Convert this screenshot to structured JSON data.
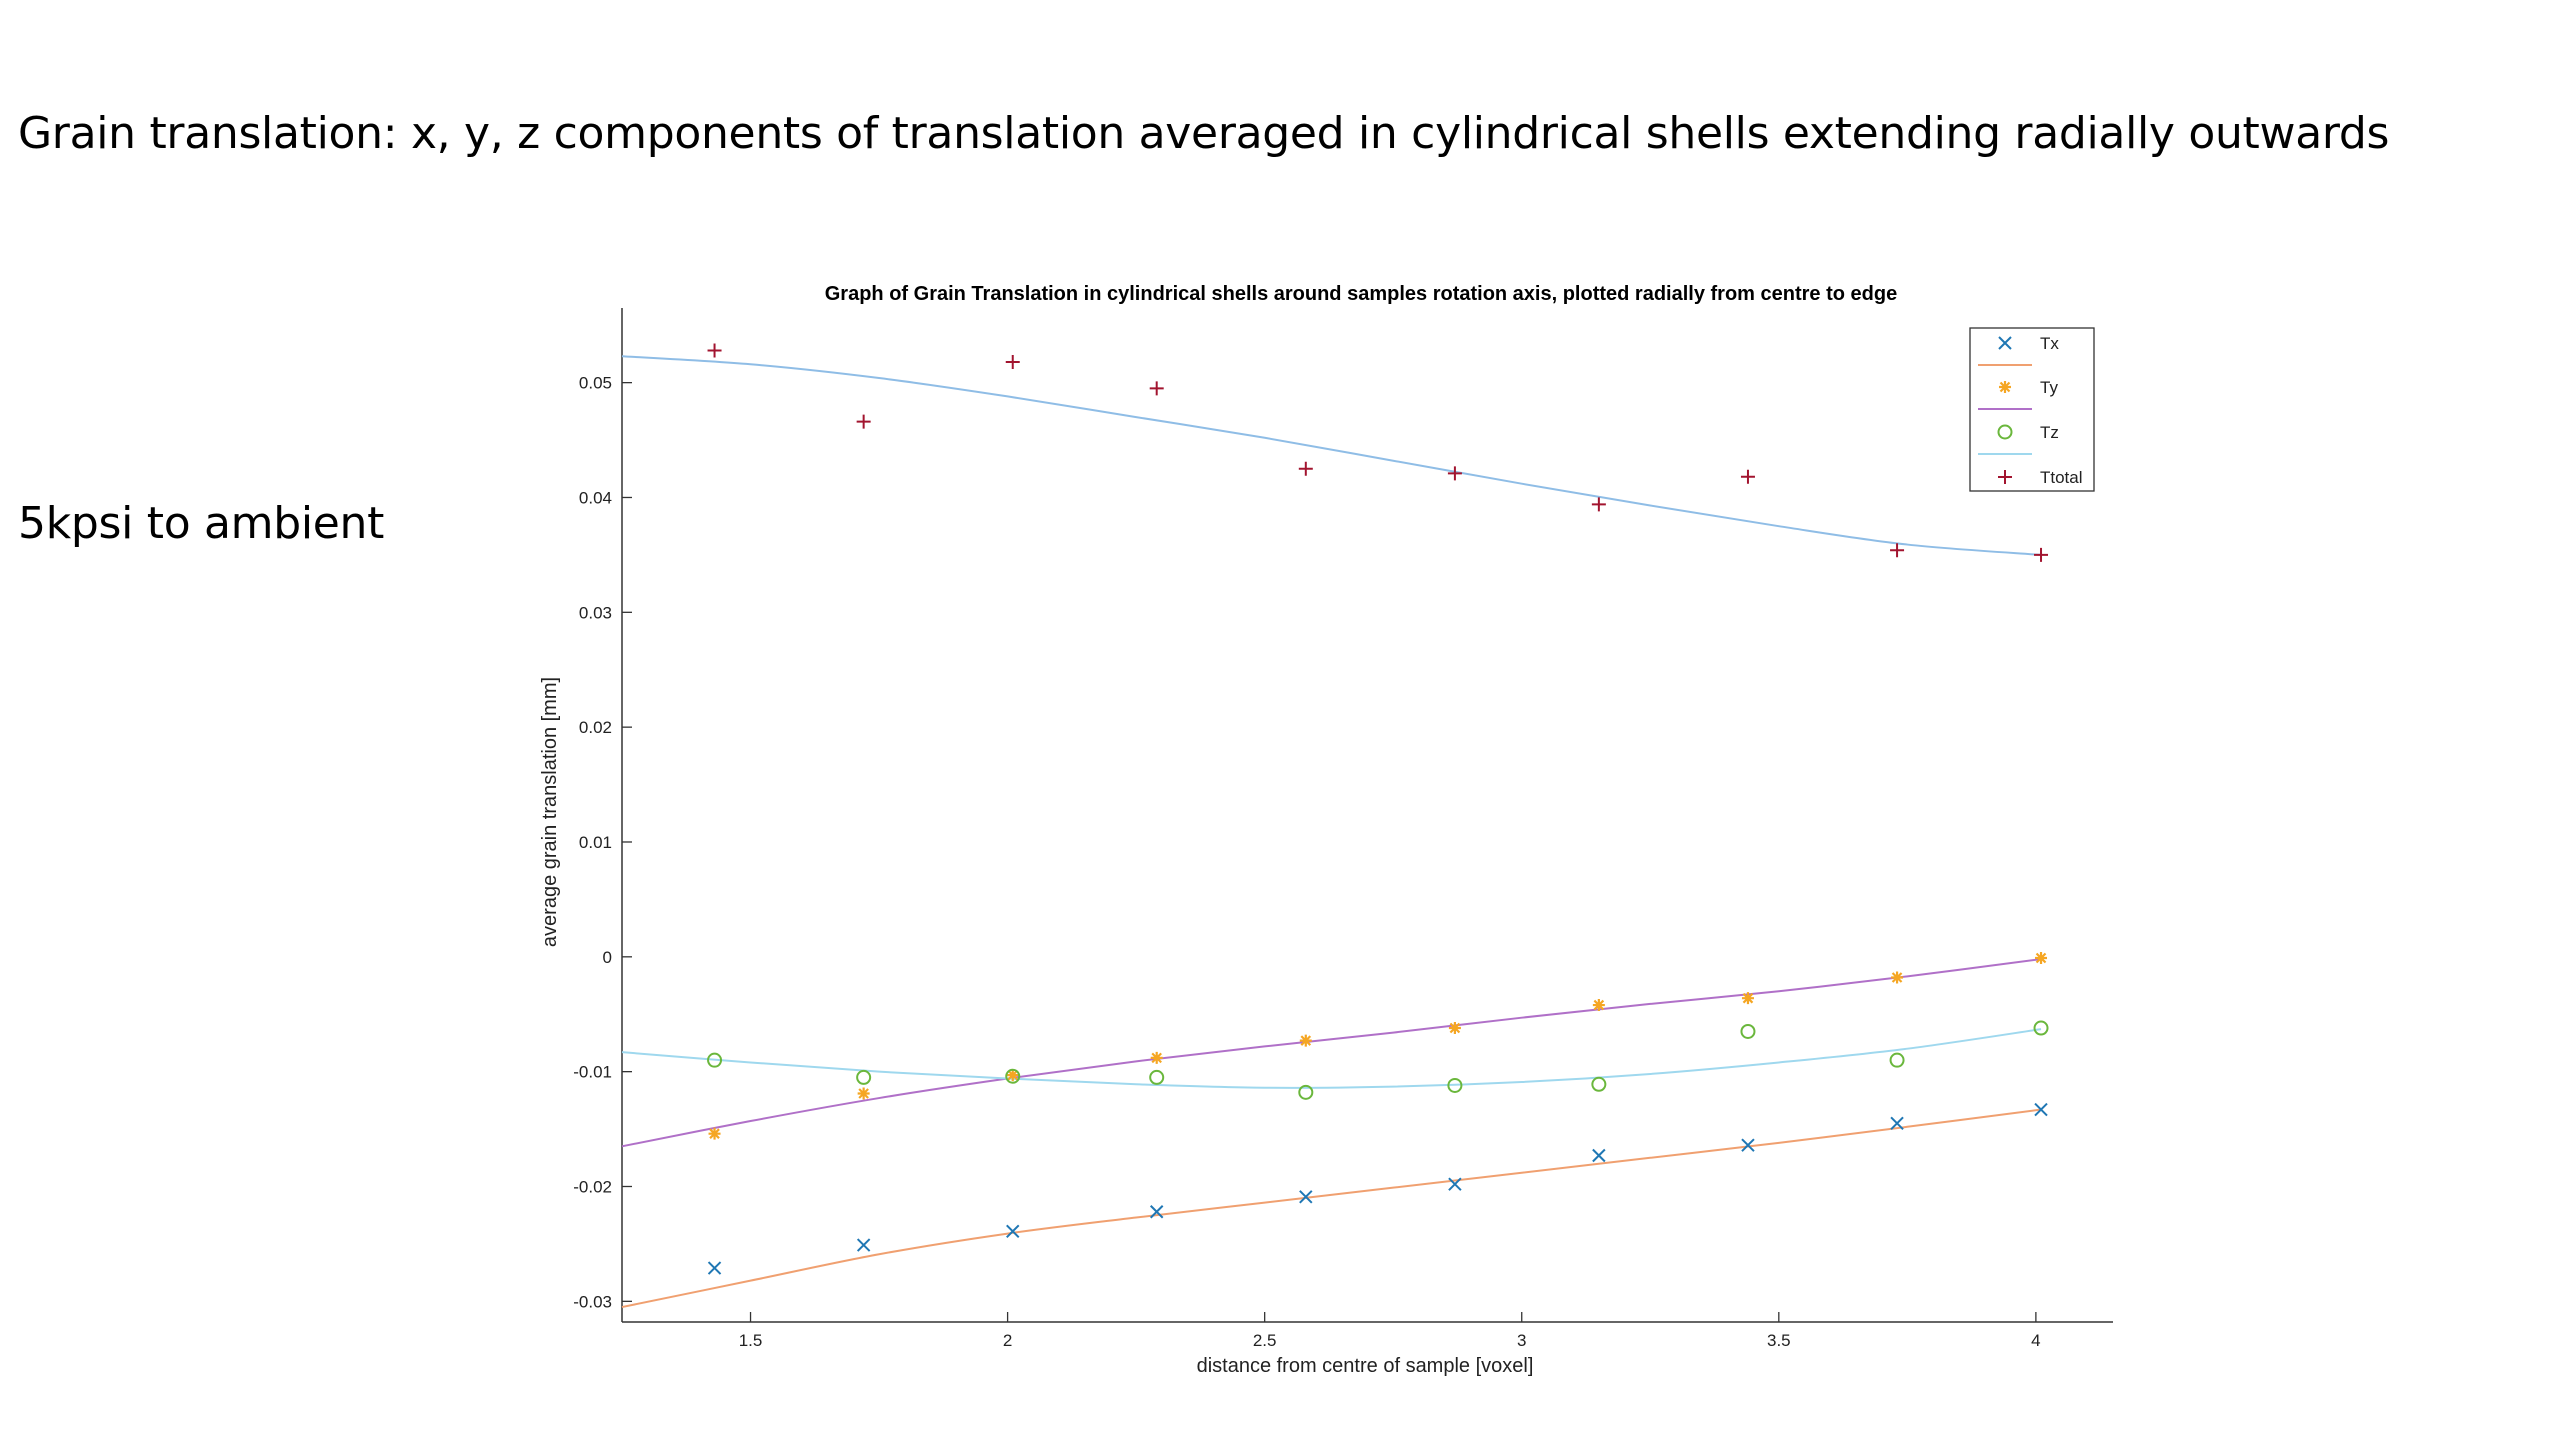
{
  "slide": {
    "title": "Grain translation: x, y, z components of translation averaged in cylindrical shells extending radially outwards",
    "subtitle": "5kpsi to ambient"
  },
  "chart_data": {
    "type": "scatter",
    "title": "Graph of Grain Translation in cylindrical shells around  samples rotation axis, plotted radially from centre to edge",
    "xlabel": "distance from centre of sample [voxel]",
    "ylabel": "average grain translation [mm]",
    "xlim": [
      1.25,
      4.15
    ],
    "ylim": [
      -0.0318,
      0.0565
    ],
    "xticks": [
      1.5,
      2,
      2.5,
      3,
      3.5,
      4
    ],
    "xtick_labels": [
      "1.5",
      "2",
      "2.5",
      "3",
      "3.5",
      "4"
    ],
    "yticks": [
      -0.03,
      -0.02,
      -0.01,
      0,
      0.01,
      0.02,
      0.03,
      0.04,
      0.05
    ],
    "ytick_labels": [
      "-0.03",
      "-0.02",
      "-0.01",
      "0",
      "0.01",
      "0.02",
      "0.03",
      "0.04",
      "0.05"
    ],
    "legend_position": "top-right",
    "legend": [
      "Tx",
      "",
      "Ty",
      "",
      "Tz",
      "",
      "Ttotal"
    ],
    "colors": {
      "Tx": "#1f77b4",
      "Ty": "#f5a623",
      "Tz": "#6ab73c",
      "Ttotal": "#a2142f",
      "fitTx": "#f0a070",
      "fitTy": "#b070c8",
      "fitTz": "#9fd8ee",
      "fitTtotal": "#8fbde6"
    },
    "x": [
      1.43,
      1.72,
      2.01,
      2.29,
      2.58,
      2.87,
      3.15,
      3.44,
      3.73,
      4.01
    ],
    "series": [
      {
        "name": "Tx",
        "marker": "x",
        "values": [
          -0.0271,
          -0.0251,
          -0.0239,
          -0.0222,
          -0.0209,
          -0.0198,
          -0.0173,
          -0.0164,
          -0.0145,
          -0.0133
        ]
      },
      {
        "name": "Ty",
        "marker": "star",
        "values": [
          -0.0154,
          -0.0119,
          -0.0103,
          -0.0088,
          -0.0073,
          -0.0062,
          -0.0042,
          -0.0036,
          -0.0018,
          -0.0001
        ]
      },
      {
        "name": "Tz",
        "marker": "circle",
        "values": [
          -0.009,
          -0.0105,
          -0.0104,
          -0.0105,
          -0.0118,
          -0.0112,
          -0.0111,
          -0.0065,
          -0.009,
          -0.0062
        ]
      },
      {
        "name": "Ttotal",
        "marker": "plus",
        "values": [
          0.0528,
          0.0466,
          0.0518,
          0.0495,
          0.0425,
          0.0421,
          0.0394,
          0.0418,
          0.0354,
          0.035
        ]
      }
    ],
    "fits": [
      {
        "name": "fitTx",
        "x": [
          1.25,
          1.5,
          1.75,
          2.0,
          2.25,
          2.5,
          2.75,
          3.0,
          3.25,
          3.5,
          3.75,
          4.01
        ],
        "values": [
          -0.0305,
          -0.0282,
          -0.0259,
          -0.0241,
          -0.0227,
          -0.0214,
          -0.0201,
          -0.0188,
          -0.0175,
          -0.0162,
          -0.0148,
          -0.0133
        ]
      },
      {
        "name": "fitTy",
        "x": [
          1.25,
          1.5,
          1.75,
          2.0,
          2.25,
          2.5,
          2.75,
          3.0,
          3.25,
          3.5,
          3.75,
          4.01
        ],
        "values": [
          -0.0165,
          -0.0143,
          -0.0123,
          -0.0106,
          -0.0091,
          -0.0078,
          -0.0066,
          -0.0053,
          -0.0041,
          -0.003,
          -0.0017,
          -0.0002
        ]
      },
      {
        "name": "fitTz",
        "x": [
          1.25,
          1.5,
          1.75,
          2.0,
          2.25,
          2.5,
          2.75,
          3.0,
          3.25,
          3.5,
          3.75,
          4.01
        ],
        "values": [
          -0.0083,
          -0.0092,
          -0.01,
          -0.0106,
          -0.0111,
          -0.0114,
          -0.0113,
          -0.0109,
          -0.0102,
          -0.0092,
          -0.008,
          -0.0063
        ]
      },
      {
        "name": "fitTtotal",
        "x": [
          1.25,
          1.5,
          1.75,
          2.0,
          2.25,
          2.5,
          2.75,
          3.0,
          3.25,
          3.5,
          3.75,
          4.01
        ],
        "values": [
          0.0523,
          0.0516,
          0.0504,
          0.0488,
          0.047,
          0.0452,
          0.0432,
          0.0412,
          0.0393,
          0.0375,
          0.0359,
          0.035
        ]
      }
    ]
  }
}
